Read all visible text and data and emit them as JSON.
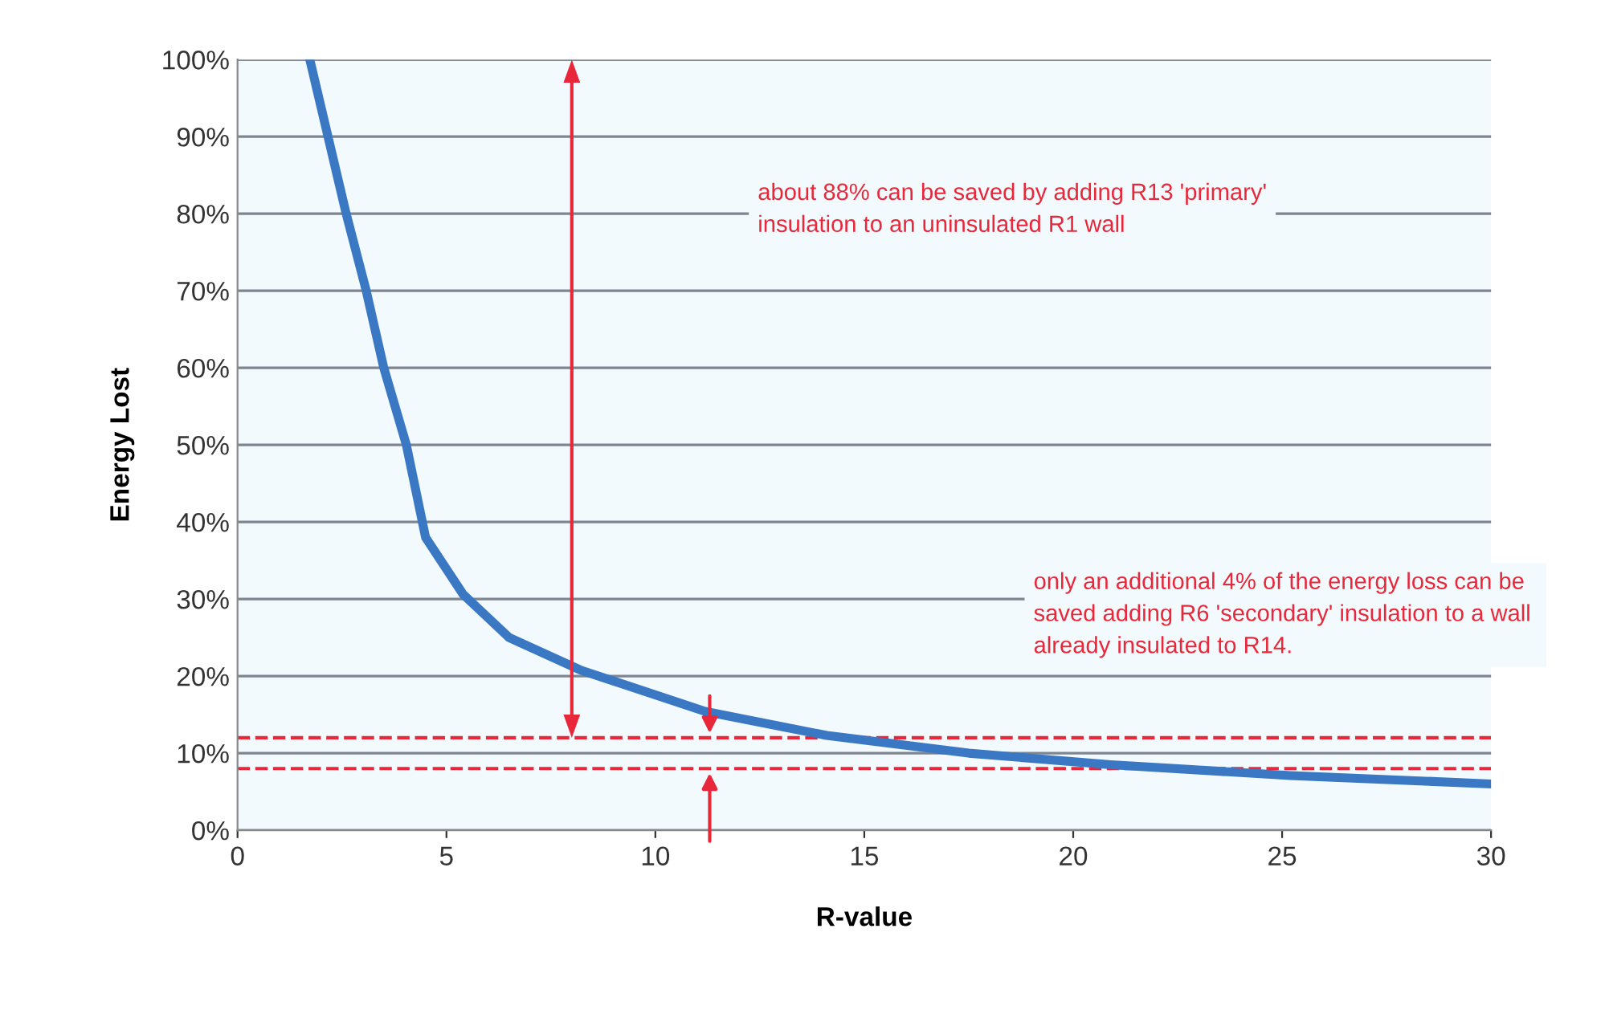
{
  "chart_data": {
    "type": "line",
    "xlabel": "R-value",
    "ylabel": "Energy Lost",
    "series": [
      {
        "color": "#3a78c3",
        "x": [
          1.73,
          2.6,
          3.08,
          3.5,
          4.04,
          4.5,
          5.4,
          6.5,
          8.2,
          11.2,
          14.1,
          17.5,
          20.9,
          25.2,
          30
        ],
        "values": [
          100,
          80,
          70,
          60,
          50,
          38,
          30.6,
          25,
          20.8,
          15.4,
          12.3,
          10,
          8.5,
          7.1,
          6
        ]
      }
    ],
    "xlim": [
      0,
      30
    ],
    "xticks": [
      0,
      5,
      10,
      15,
      20,
      25,
      30
    ],
    "ylim": [
      0,
      100
    ],
    "yticks": [
      {
        "value": 0,
        "label": "0%"
      },
      {
        "value": 10,
        "label": "10%"
      },
      {
        "value": 20,
        "label": "20%"
      },
      {
        "value": 30,
        "label": "30%"
      },
      {
        "value": 40,
        "label": "40%"
      },
      {
        "value": 50,
        "label": "50%"
      },
      {
        "value": 60,
        "label": "60%"
      },
      {
        "value": 70,
        "label": "70%"
      },
      {
        "value": 80,
        "label": "80%"
      },
      {
        "value": 90,
        "label": "90%"
      },
      {
        "value": 100,
        "label": "100%"
      }
    ],
    "grid": "y",
    "marker": "none",
    "line_style": "solid",
    "ref_lines": [
      {
        "axis": "y",
        "value": 12,
        "color": "#e8283a",
        "line_style": "dashed"
      },
      {
        "axis": "y",
        "value": 8,
        "color": "#e8283a",
        "line_style": "dashed"
      }
    ],
    "annotations": [
      "about 88% can be saved by adding R13 'primary' insulation to an uninsulated R1 wall",
      "only an additional 4% of the energy loss can be saved adding R6 'secondary' insulation to a wall  already insulated to R14."
    ]
  }
}
